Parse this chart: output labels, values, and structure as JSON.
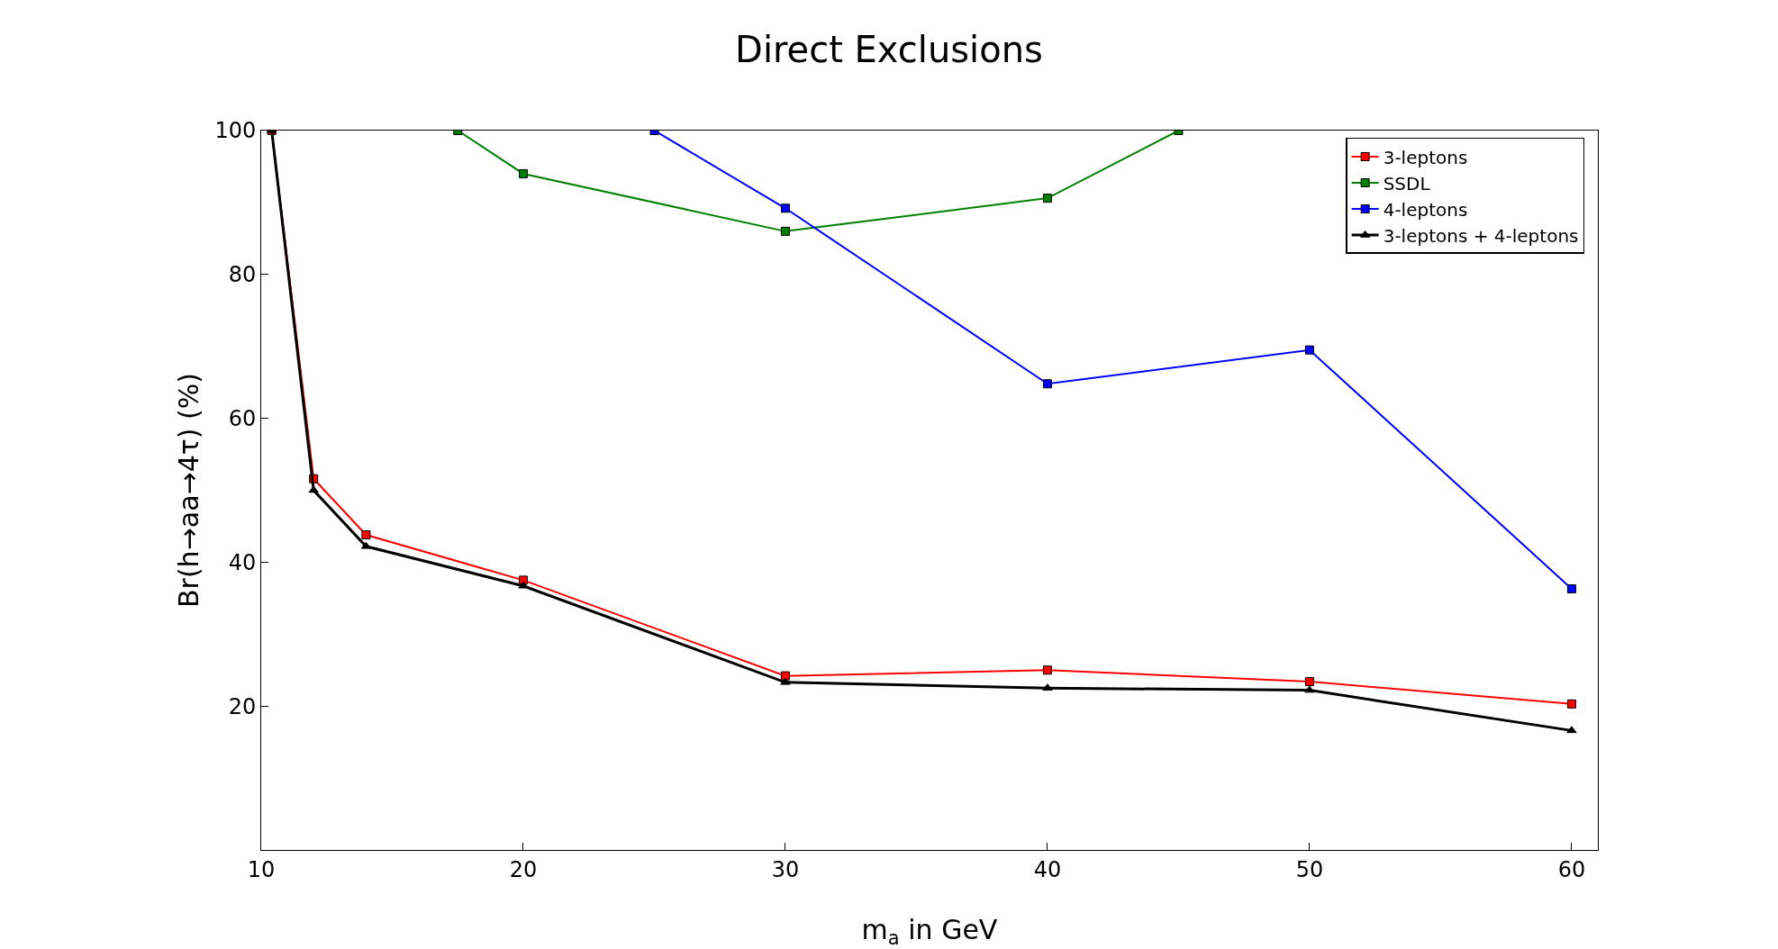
{
  "chart_data": {
    "type": "line",
    "title": "Direct Exclusions",
    "xlabel": "m$_{a}$ in GeV",
    "ylabel": "Br(h→aa→4τ) (%)",
    "xlim": [
      10,
      61
    ],
    "xticks": [
      10,
      20,
      30,
      40,
      50,
      60
    ],
    "ylim": [
      0,
      100
    ],
    "yticks": [
      20,
      40,
      60,
      80,
      100
    ],
    "grid": false,
    "legend": "top right",
    "series": [
      {
        "name": "3-leptons",
        "color": "#ff0000",
        "marker": "square",
        "x": [
          10.4,
          12,
          14,
          20,
          30,
          40,
          50,
          60
        ],
        "values": [
          100,
          51.6,
          43.8,
          37.5,
          24.2,
          25,
          23.4,
          20.3
        ]
      },
      {
        "name": "SSDL",
        "color": "#008000",
        "marker": "square",
        "x": [
          17.5,
          20,
          30,
          40,
          45
        ],
        "values": [
          100,
          94,
          86,
          90.6,
          100
        ]
      },
      {
        "name": "4-leptons",
        "color": "#0000ff",
        "marker": "square",
        "x": [
          25,
          30,
          40,
          50,
          60
        ],
        "values": [
          100,
          89.2,
          64.8,
          69.5,
          36.3
        ]
      },
      {
        "name": "3-leptons + 4-leptons",
        "color": "#000000",
        "marker": "triangle",
        "x": [
          10.4,
          12,
          14,
          20,
          30,
          40,
          50,
          60
        ],
        "values": [
          100,
          50,
          42.2,
          36.7,
          23.3,
          22.5,
          22.2,
          16.6
        ]
      }
    ]
  }
}
